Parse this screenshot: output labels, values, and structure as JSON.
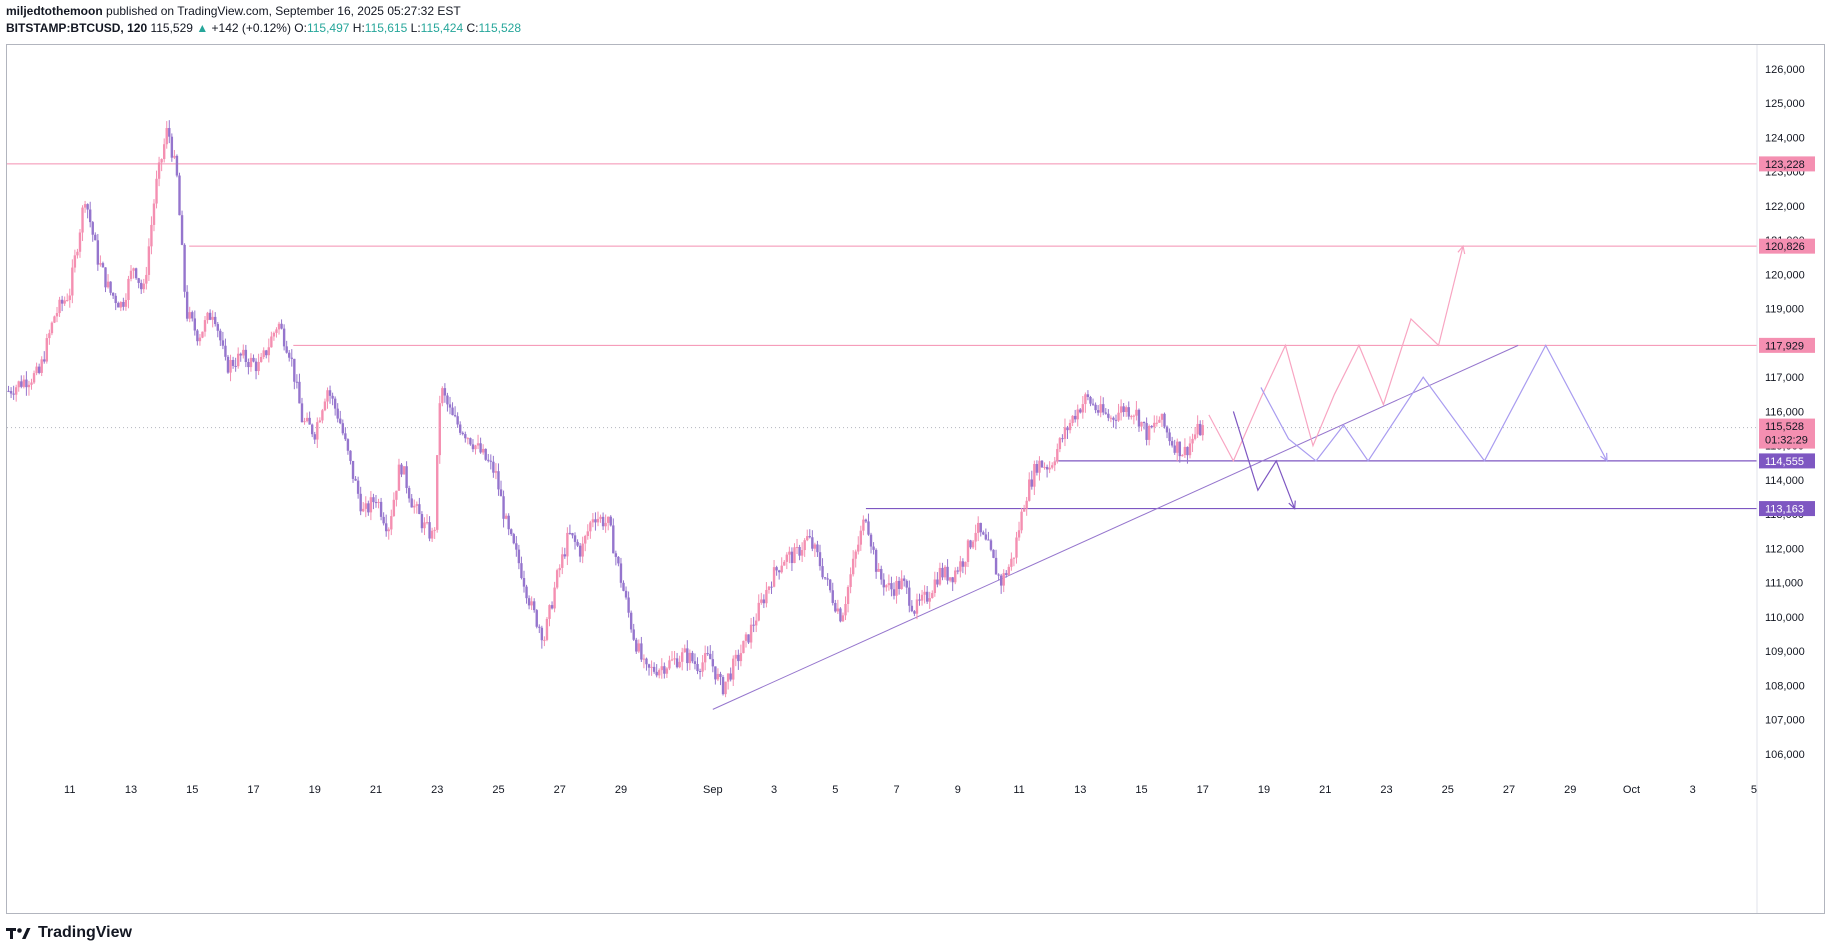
{
  "header": {
    "author": "miljedtothemoon",
    "published": "published on TradingView.com, September 16, 2025 05:27:32 EST",
    "symbol": "BITSTAMP:BTCUSD, 120",
    "last": "115,529",
    "change_arrow": "▲",
    "change": "+142 (+0.12%)",
    "o_label": "O:",
    "o_value": "115,497",
    "h_label": "H:",
    "h_value": "115,615",
    "l_label": "L:",
    "l_value": "115,424",
    "c_label": "C:",
    "c_value": "115,528"
  },
  "footer": {
    "brand": "TradingView",
    "logo_icon": "tradingview-logo-icon"
  },
  "colors": {
    "bull": "#f48fb1",
    "bear": "#9575cd",
    "pink_line": "#f48fb1",
    "purple_line": "#7e57c2",
    "trend_line": "#9575cd",
    "grid": "#f0f3fa",
    "axis_text": "#131722",
    "pink_badge": "#f48fb1",
    "purple_badge": "#7e57c2"
  },
  "chart_data": {
    "type": "candlestick",
    "interval": "120",
    "ylim": [
      105500,
      126700
    ],
    "y_ticks": [
      106000,
      107000,
      108000,
      109000,
      110000,
      111000,
      112000,
      113000,
      114000,
      115000,
      116000,
      117000,
      118000,
      119000,
      120000,
      121000,
      122000,
      123000,
      124000,
      125000,
      126000
    ],
    "y_tick_labels": [
      "106,000",
      "107,000",
      "108,000",
      "109,000",
      "110,000",
      "111,000",
      "112,000",
      "113,000",
      "114,000",
      "115,000",
      "116,000",
      "117,000",
      "118,000",
      "119,000",
      "120,000",
      "121,000",
      "122,000",
      "123,000",
      "124,000",
      "125,000",
      "126,000"
    ],
    "x_ticks": [
      {
        "day": 11,
        "label": "11"
      },
      {
        "day": 13,
        "label": "13"
      },
      {
        "day": 15,
        "label": "15"
      },
      {
        "day": 17,
        "label": "17"
      },
      {
        "day": 19,
        "label": "19"
      },
      {
        "day": 21,
        "label": "21"
      },
      {
        "day": 23,
        "label": "23"
      },
      {
        "day": 25,
        "label": "25"
      },
      {
        "day": 27,
        "label": "27"
      },
      {
        "day": 29,
        "label": "29"
      },
      {
        "day": 32,
        "label": "Sep"
      },
      {
        "day": 34,
        "label": "3"
      },
      {
        "day": 36,
        "label": "5"
      },
      {
        "day": 38,
        "label": "7"
      },
      {
        "day": 40,
        "label": "9"
      },
      {
        "day": 42,
        "label": "11"
      },
      {
        "day": 44,
        "label": "13"
      },
      {
        "day": 46,
        "label": "15"
      },
      {
        "day": 48,
        "label": "17"
      },
      {
        "day": 50,
        "label": "19"
      },
      {
        "day": 52,
        "label": "21"
      },
      {
        "day": 54,
        "label": "23"
      },
      {
        "day": 56,
        "label": "25"
      },
      {
        "day": 58,
        "label": "27"
      },
      {
        "day": 60,
        "label": "29"
      },
      {
        "day": 62,
        "label": "Oct"
      },
      {
        "day": 64,
        "label": "3"
      },
      {
        "day": 66,
        "label": "5"
      }
    ],
    "x_range_days": [
      8.95,
      66.1
    ],
    "price_path": [
      [
        9.0,
        116600
      ],
      [
        9.5,
        116900
      ],
      [
        10.0,
        117100
      ],
      [
        10.5,
        118800
      ],
      [
        11.0,
        119500
      ],
      [
        11.5,
        122300
      ],
      [
        11.9,
        120500
      ],
      [
        12.3,
        119500
      ],
      [
        12.7,
        119100
      ],
      [
        13.1,
        120300
      ],
      [
        13.4,
        119400
      ],
      [
        13.8,
        122500
      ],
      [
        14.2,
        124300
      ],
      [
        14.5,
        122800
      ],
      [
        14.8,
        118900
      ],
      [
        15.2,
        118200
      ],
      [
        15.7,
        119000
      ],
      [
        16.1,
        117300
      ],
      [
        16.6,
        117600
      ],
      [
        17.2,
        117300
      ],
      [
        17.8,
        118600
      ],
      [
        18.2,
        117700
      ],
      [
        18.6,
        115700
      ],
      [
        19.0,
        115400
      ],
      [
        19.4,
        116700
      ],
      [
        19.8,
        115800
      ],
      [
        20.2,
        114300
      ],
      [
        20.6,
        113000
      ],
      [
        21.0,
        113500
      ],
      [
        21.4,
        112600
      ],
      [
        21.8,
        114500
      ],
      [
        22.2,
        113300
      ],
      [
        22.6,
        112600
      ],
      [
        22.9,
        112300
      ],
      [
        23.1,
        116700
      ],
      [
        23.5,
        115800
      ],
      [
        24.0,
        115300
      ],
      [
        24.5,
        114700
      ],
      [
        24.9,
        114200
      ],
      [
        25.3,
        112500
      ],
      [
        25.7,
        111500
      ],
      [
        26.1,
        110200
      ],
      [
        26.5,
        109400
      ],
      [
        26.9,
        111100
      ],
      [
        27.3,
        112400
      ],
      [
        27.7,
        111900
      ],
      [
        28.1,
        113000
      ],
      [
        28.6,
        112700
      ],
      [
        29.0,
        111100
      ],
      [
        29.4,
        109500
      ],
      [
        29.8,
        108400
      ],
      [
        30.2,
        108500
      ],
      [
        30.7,
        108700
      ],
      [
        31.1,
        108900
      ],
      [
        31.5,
        108600
      ],
      [
        31.9,
        108800
      ],
      [
        32.3,
        107900
      ],
      [
        32.7,
        108600
      ],
      [
        33.1,
        109300
      ],
      [
        33.5,
        110200
      ],
      [
        33.9,
        111100
      ],
      [
        34.3,
        111700
      ],
      [
        34.7,
        111800
      ],
      [
        35.1,
        112300
      ],
      [
        35.4,
        111800
      ],
      [
        35.8,
        110800
      ],
      [
        36.2,
        110000
      ],
      [
        36.6,
        111600
      ],
      [
        37.0,
        113000
      ],
      [
        37.4,
        111200
      ],
      [
        37.8,
        110800
      ],
      [
        38.2,
        111000
      ],
      [
        38.6,
        110200
      ],
      [
        39.0,
        110600
      ],
      [
        39.4,
        111300
      ],
      [
        39.8,
        111200
      ],
      [
        40.2,
        111700
      ],
      [
        40.6,
        112600
      ],
      [
        41.0,
        112000
      ],
      [
        41.4,
        111000
      ],
      [
        41.8,
        111700
      ],
      [
        42.2,
        113500
      ],
      [
        42.6,
        114500
      ],
      [
        43.0,
        114400
      ],
      [
        43.4,
        115200
      ],
      [
        43.8,
        115900
      ],
      [
        44.2,
        116400
      ],
      [
        44.6,
        116000
      ],
      [
        45.0,
        115800
      ],
      [
        45.4,
        116100
      ],
      [
        45.8,
        116000
      ],
      [
        46.2,
        115300
      ],
      [
        46.6,
        115800
      ],
      [
        47.0,
        115100
      ],
      [
        47.4,
        114800
      ],
      [
        47.8,
        115400
      ],
      [
        48.0,
        115500
      ]
    ],
    "horizontal_levels": [
      {
        "price": 123228,
        "label": "123,228",
        "color": "pink",
        "from_day": 8.95
      },
      {
        "price": 120826,
        "label": "120,826",
        "color": "pink",
        "from_day": 14.9
      },
      {
        "price": 117929,
        "label": "117,929",
        "color": "pink",
        "from_day": 18.3
      },
      {
        "price": 114555,
        "label": "114,555",
        "color": "purple",
        "from_day": 43.2
      },
      {
        "price": 113163,
        "label": "113,163",
        "color": "purple",
        "from_day": 37.0
      }
    ],
    "current_price": {
      "price": 115528,
      "label": "115,528",
      "countdown": "01:32:29"
    },
    "trendline": {
      "from": [
        32.0,
        107300
      ],
      "to": [
        58.3,
        117929
      ]
    },
    "projections": [
      {
        "color": "pink",
        "points": [
          [
            48.2,
            115900
          ],
          [
            49.0,
            114555
          ],
          [
            49.9,
            116400
          ],
          [
            50.7,
            117929
          ],
          [
            51.6,
            115000
          ],
          [
            52.3,
            116500
          ],
          [
            53.1,
            117929
          ],
          [
            53.9,
            116200
          ],
          [
            54.8,
            118700
          ],
          [
            55.7,
            117929
          ],
          [
            56.5,
            120826
          ]
        ],
        "arrow": true
      },
      {
        "color": "purple",
        "points": [
          [
            49.9,
            116700
          ],
          [
            50.8,
            115200
          ],
          [
            51.7,
            114555
          ],
          [
            52.6,
            115600
          ],
          [
            53.4,
            114555
          ],
          [
            55.2,
            117000
          ],
          [
            57.2,
            114555
          ],
          [
            59.2,
            117929
          ],
          [
            61.2,
            114555
          ]
        ],
        "arrow": true
      },
      {
        "color": "purple_dark",
        "points": [
          [
            49.0,
            116000
          ],
          [
            49.8,
            113700
          ],
          [
            50.4,
            114555
          ],
          [
            51.0,
            113163
          ]
        ],
        "arrow": true
      }
    ]
  }
}
